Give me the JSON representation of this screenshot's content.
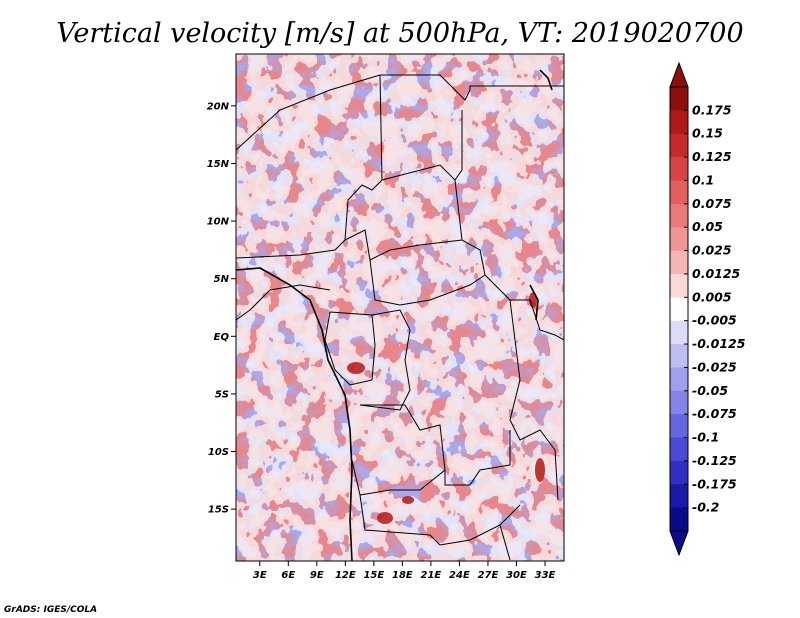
{
  "chart_data": {
    "type": "heatmap",
    "title": "Vertical velocity [m/s] at 500hPa, VT: 2019020700",
    "variable": "Vertical velocity",
    "units": "m/s",
    "level": "500hPa",
    "valid_time": "2019020700",
    "x_ticks": [
      "3E",
      "6E",
      "9E",
      "12E",
      "15E",
      "18E",
      "21E",
      "24E",
      "27E",
      "30E",
      "33E"
    ],
    "x_values": [
      3,
      6,
      9,
      12,
      15,
      18,
      21,
      24,
      27,
      30,
      33
    ],
    "y_ticks": [
      "20N",
      "15N",
      "10N",
      "5N",
      "EQ",
      "5S",
      "10S",
      "15S"
    ],
    "y_values": [
      20,
      15,
      10,
      5,
      0,
      -5,
      -10,
      -15
    ],
    "xlim": [
      0.5,
      35
    ],
    "ylim": [
      -19.5,
      24.5
    ],
    "colorbar": {
      "levels": [
        "0.175",
        "0.15",
        "0.125",
        "0.1",
        "0.075",
        "0.05",
        "0.025",
        "0.0125",
        "0.005",
        "-0.005",
        "-0.0125",
        "-0.025",
        "-0.05",
        "-0.075",
        "-0.1",
        "-0.125",
        "-0.175",
        "-0.2"
      ],
      "colors": [
        "#8e0d0d",
        "#b11919",
        "#c72a2a",
        "#d94343",
        "#e25f5f",
        "#e87a7a",
        "#f09595",
        "#f6b5b5",
        "#fbd9d9",
        "#ffffff",
        "#dcdcf9",
        "#bebef3",
        "#a0a0ee",
        "#8585e8",
        "#6666df",
        "#4a4ad6",
        "#2f2fc3",
        "#1a1aa8",
        "#0b0b8a"
      ],
      "max_arrow_color": "#8e0d0d",
      "min_arrow_color": "#0b0b8a"
    }
  },
  "credit": "GrADS: IGES/COLA"
}
